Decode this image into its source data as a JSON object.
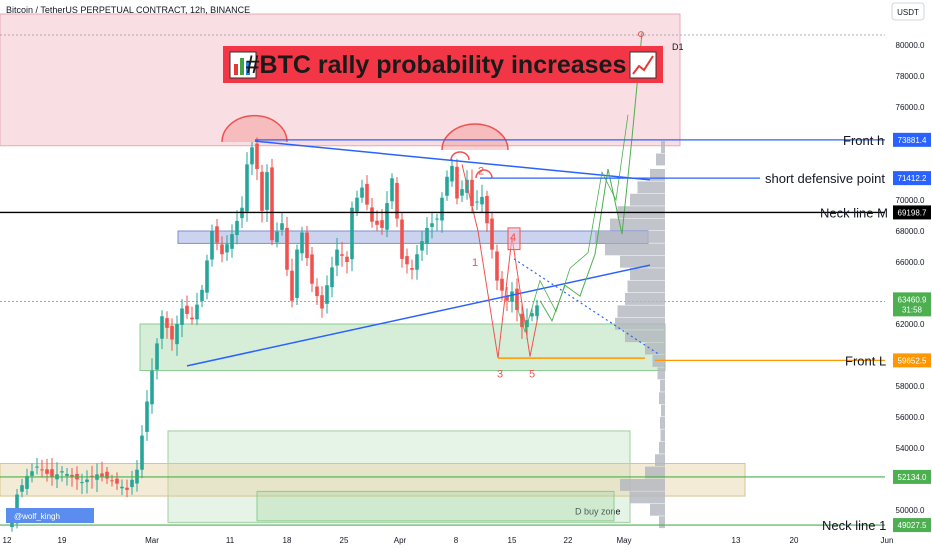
{
  "header": {
    "symbol_title": "Bitcoin / TetherUS PERPETUAL CONTRACT, 12h, BINANCE",
    "currency": "USDT"
  },
  "banner": {
    "text": "#BTC rally probability increases",
    "icon_left": "bar-chart-icon",
    "icon_right": "trend-up-icon"
  },
  "watermark": "@wolf_kingh",
  "chart_data": {
    "type": "candlestick",
    "title": "#BTC rally probability increases",
    "ylim": [
      49000,
      81300
    ],
    "x_ticks": [
      "12",
      "19",
      "Mar",
      "11",
      "18",
      "25",
      "Apr",
      "8",
      "15",
      "22",
      "May",
      "13",
      "20",
      "Jun"
    ],
    "y_ticks": [
      50000,
      52000,
      54000,
      56000,
      58000,
      60000,
      62000,
      64000,
      66000,
      68000,
      70000,
      72000,
      74000,
      76000,
      78000,
      80000
    ],
    "y_tick_labels": [
      "50000.0",
      "52000.0",
      "54000.0",
      "56000.0",
      "58000.0",
      "60000.0",
      "62000.0",
      "64000.0",
      "66000.0",
      "68000.0",
      "70000.0",
      "72000.0",
      "74000.0",
      "76000.0",
      "78000.0",
      "80000.0"
    ],
    "price_path": [
      [
        0,
        49200
      ],
      [
        1,
        51000
      ],
      [
        3,
        52200
      ],
      [
        5,
        52800
      ],
      [
        8,
        52100
      ],
      [
        10,
        52500
      ],
      [
        14,
        51800
      ],
      [
        17,
        52300
      ],
      [
        20,
        51900
      ],
      [
        23,
        51300
      ],
      [
        25,
        52600
      ],
      [
        27,
        57000
      ],
      [
        28,
        59000
      ],
      [
        30,
        62500
      ],
      [
        32,
        61000
      ],
      [
        34,
        63000
      ],
      [
        36,
        62300
      ],
      [
        38,
        64200
      ],
      [
        40,
        68000
      ],
      [
        42,
        66500
      ],
      [
        44,
        67800
      ],
      [
        46,
        69500
      ],
      [
        47,
        72300
      ],
      [
        48,
        73400
      ],
      [
        49,
        72000
      ],
      [
        50,
        69300
      ],
      [
        51,
        71800
      ],
      [
        52,
        67400
      ],
      [
        54,
        68500
      ],
      [
        55,
        65500
      ],
      [
        56,
        63500
      ],
      [
        57,
        66800
      ],
      [
        58,
        67900
      ],
      [
        60,
        64600
      ],
      [
        62,
        63000
      ],
      [
        63,
        64500
      ],
      [
        65,
        66800
      ],
      [
        67,
        66000
      ],
      [
        68,
        69500
      ],
      [
        70,
        70800
      ],
      [
        72,
        68600
      ],
      [
        74,
        68200
      ],
      [
        76,
        71400
      ],
      [
        78,
        66200
      ],
      [
        80,
        65500
      ],
      [
        81,
        66500
      ],
      [
        83,
        68200
      ],
      [
        85,
        68800
      ],
      [
        87,
        71500
      ],
      [
        88,
        72200
      ],
      [
        89,
        70100
      ],
      [
        91,
        71300
      ],
      [
        92,
        69600
      ],
      [
        94,
        70200
      ],
      [
        96,
        66800
      ],
      [
        97,
        64800
      ],
      [
        99,
        63500
      ],
      [
        100,
        64100
      ],
      [
        101,
        62900
      ],
      [
        102,
        61800
      ],
      [
        104,
        62700
      ],
      [
        105,
        63200
      ]
    ],
    "horizontal_levels": [
      {
        "label": "Front h",
        "value": 73881.4,
        "price_label": "73881.4",
        "color": "#2962ff"
      },
      {
        "label": "short defensive point",
        "value": 71412.2,
        "price_label": "71412.2",
        "color": "#2962ff"
      },
      {
        "label": "Neck line M",
        "value": 69198.7,
        "price_label": "69198.7",
        "color": "#000000"
      },
      {
        "label": "Front L",
        "value": 59652.5,
        "price_label": "59652.5",
        "color": "#ff9800"
      },
      {
        "label": "Neck line 1",
        "value": 49027.5,
        "price_label": "49027.5",
        "color": "#4caf50"
      },
      {
        "label": "",
        "value": 52134.0,
        "price_label": "52134.0",
        "color": "#4caf50"
      }
    ],
    "current_price": {
      "value": 63460.9,
      "price_label": "63460.9",
      "countdown": "31:58"
    },
    "zones": [
      {
        "label": "D1",
        "top": 82000,
        "bottom": 73500,
        "color": "#f2b8c0"
      },
      {
        "label": "",
        "top": 68000,
        "bottom": 67200,
        "color": "#8c9ed9"
      },
      {
        "label": "",
        "top": 62000,
        "bottom": 59000,
        "color": "#a5d6a7"
      },
      {
        "label": "D buy zone",
        "top": 55100,
        "bottom": 49200,
        "color": "#c8e6c9"
      },
      {
        "label": "",
        "top": 53000,
        "bottom": 50900,
        "color": "#e6d3a3"
      }
    ],
    "wave_labels": [
      "1",
      "2",
      "3",
      "4",
      "5"
    ]
  }
}
